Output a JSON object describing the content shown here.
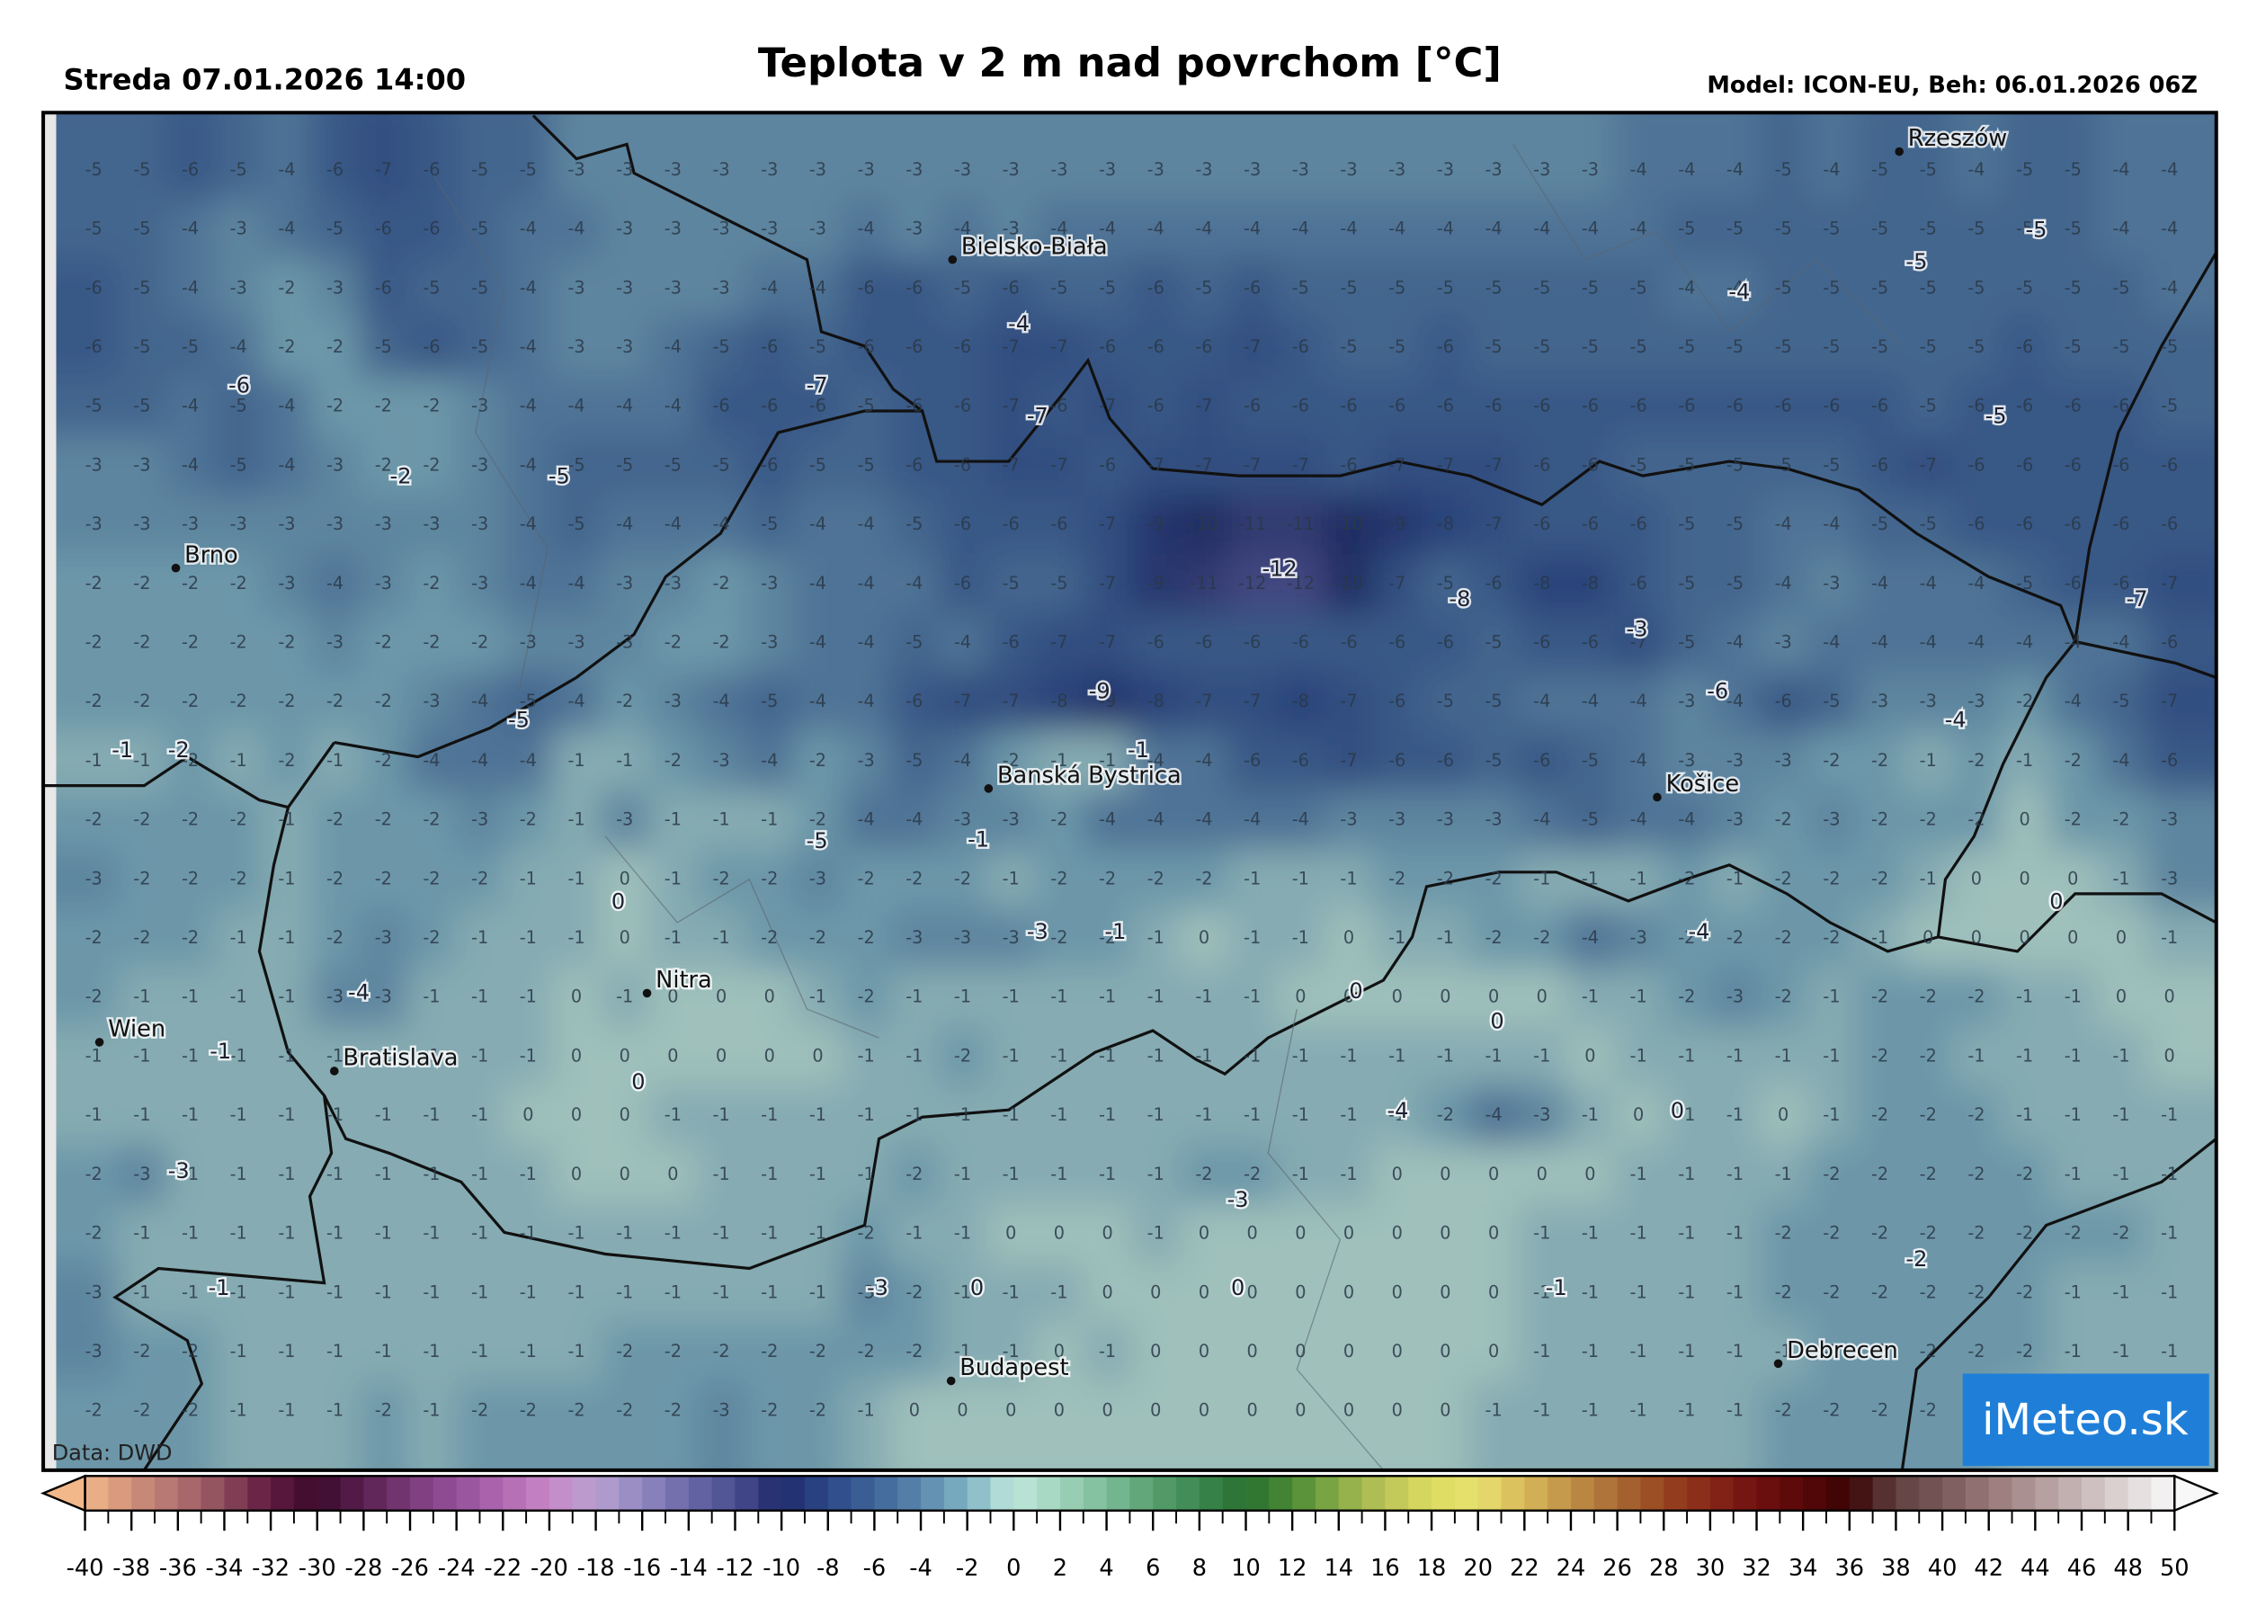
{
  "header": {
    "date": "Streda 07.01.2026 14:00",
    "title": "Teplota v 2 m nad povrchom [°C]",
    "model": "Model: ICON-EU, Beh: 06.01.2026 06Z"
  },
  "map": {
    "grid": [
      [
        -5,
        -5,
        -6,
        -5,
        -4,
        -6,
        -7,
        -6,
        -5,
        -5,
        -3,
        -3,
        -3,
        -3,
        -3,
        -3,
        -3,
        -3,
        -3,
        -3,
        -3,
        -3,
        -3,
        -3,
        -3,
        -3,
        -3,
        -3,
        -3,
        -3,
        -3,
        -3,
        -4,
        -4,
        -4,
        -5,
        -4,
        -5,
        -5,
        -4,
        -5,
        -5,
        -4,
        -4
      ],
      [
        -5,
        -5,
        -4,
        -3,
        -4,
        -5,
        -6,
        -6,
        -5,
        -4,
        -4,
        -3,
        -3,
        -3,
        -3,
        -3,
        -4,
        -3,
        -4,
        -3,
        -4,
        -4,
        -4,
        -4,
        -4,
        -4,
        -4,
        -4,
        -4,
        -4,
        -4,
        -4,
        -4,
        -5,
        -5,
        -5,
        -5,
        -5,
        -5,
        -5,
        -5,
        -5,
        -4,
        -4
      ],
      [
        -6,
        -5,
        -4,
        -3,
        -2,
        -3,
        -6,
        -5,
        -5,
        -4,
        -3,
        -3,
        -3,
        -3,
        -4,
        -4,
        -6,
        -6,
        -5,
        -6,
        -5,
        -5,
        -6,
        -5,
        -6,
        -5,
        -5,
        -5,
        -5,
        -5,
        -5,
        -5,
        -5,
        -4,
        -4,
        -5,
        -5,
        -5,
        -5,
        -5,
        -5,
        -5,
        -5,
        -4
      ],
      [
        -6,
        -5,
        -5,
        -4,
        -2,
        -2,
        -5,
        -6,
        -5,
        -4,
        -3,
        -3,
        -4,
        -5,
        -6,
        -5,
        -6,
        -6,
        -6,
        -7,
        -7,
        -6,
        -6,
        -6,
        -7,
        -6,
        -5,
        -5,
        -6,
        -5,
        -5,
        -5,
        -5,
        -5,
        -5,
        -5,
        -5,
        -5,
        -5,
        -5,
        -6,
        -5,
        -5,
        -5
      ],
      [
        -5,
        -5,
        -4,
        -5,
        -4,
        -2,
        -2,
        -2,
        -3,
        -4,
        -4,
        -4,
        -4,
        -6,
        -6,
        -6,
        -5,
        -6,
        -6,
        -7,
        -6,
        -7,
        -6,
        -7,
        -6,
        -6,
        -6,
        -6,
        -6,
        -6,
        -6,
        -6,
        -6,
        -6,
        -6,
        -6,
        -6,
        -6,
        -5,
        -6,
        -6,
        -6,
        -6,
        -5
      ],
      [
        -3,
        -3,
        -4,
        -5,
        -4,
        -3,
        -2,
        -2,
        -3,
        -4,
        -5,
        -5,
        -5,
        -5,
        -6,
        -5,
        -5,
        -6,
        -6,
        -7,
        -7,
        -6,
        -7,
        -7,
        -7,
        -7,
        -6,
        -7,
        -7,
        -7,
        -6,
        -6,
        -5,
        -5,
        -5,
        -5,
        -5,
        -6,
        -7,
        -6,
        -6,
        -6,
        -6,
        -6
      ],
      [
        -3,
        -3,
        -3,
        -3,
        -3,
        -3,
        -3,
        -3,
        -3,
        -4,
        -5,
        -4,
        -4,
        -4,
        -5,
        -4,
        -4,
        -5,
        -6,
        -6,
        -6,
        -7,
        -9,
        -10,
        -11,
        -11,
        -10,
        -9,
        -8,
        -7,
        -6,
        -6,
        -6,
        -5,
        -5,
        -4,
        -4,
        -5,
        -5,
        -6,
        -6,
        -6,
        -6,
        -6
      ],
      [
        -2,
        -2,
        -2,
        -2,
        -3,
        -4,
        -3,
        -2,
        -3,
        -4,
        -4,
        -3,
        -3,
        -2,
        -3,
        -4,
        -4,
        -4,
        -6,
        -5,
        -5,
        -7,
        -9,
        -11,
        -12,
        -12,
        -10,
        -7,
        -5,
        -6,
        -8,
        -8,
        -6,
        -5,
        -5,
        -4,
        -3,
        -4,
        -4,
        -4,
        -5,
        -6,
        -6,
        -7
      ],
      [
        -2,
        -2,
        -2,
        -2,
        -2,
        -3,
        -2,
        -2,
        -2,
        -3,
        -3,
        -3,
        -2,
        -2,
        -3,
        -4,
        -4,
        -5,
        -4,
        -6,
        -7,
        -7,
        -6,
        -6,
        -6,
        -6,
        -6,
        -6,
        -6,
        -5,
        -6,
        -6,
        -7,
        -5,
        -4,
        -3,
        -4,
        -4,
        -4,
        -4,
        -4,
        -4,
        -4,
        -6
      ],
      [
        -2,
        -2,
        -2,
        -2,
        -2,
        -2,
        -2,
        -3,
        -4,
        -5,
        -4,
        -2,
        -3,
        -4,
        -5,
        -4,
        -4,
        -6,
        -7,
        -7,
        -8,
        -9,
        -8,
        -7,
        -7,
        -8,
        -7,
        -6,
        -5,
        -5,
        -4,
        -4,
        -4,
        -3,
        -4,
        -6,
        -5,
        -3,
        -3,
        -3,
        -2,
        -4,
        -5,
        -7
      ],
      [
        -1,
        -1,
        -2,
        -1,
        -2,
        -1,
        -2,
        -4,
        -4,
        -4,
        -1,
        -1,
        -2,
        -3,
        -4,
        -2,
        -3,
        -5,
        -4,
        -2,
        -1,
        -1,
        -4,
        -4,
        -6,
        -6,
        -7,
        -6,
        -6,
        -5,
        -6,
        -5,
        -4,
        -3,
        -3,
        -3,
        -2,
        -2,
        -1,
        -2,
        -1,
        -2,
        -4,
        -6
      ],
      [
        -2,
        -2,
        -2,
        -2,
        -1,
        -2,
        -2,
        -2,
        -3,
        -2,
        -1,
        -3,
        -1,
        -1,
        -1,
        -2,
        -4,
        -4,
        -3,
        -3,
        -2,
        -4,
        -4,
        -4,
        -4,
        -4,
        -3,
        -3,
        -3,
        -3,
        -4,
        -5,
        -4,
        -4,
        -3,
        -2,
        -3,
        -2,
        -2,
        -2,
        0,
        -2,
        -2,
        -3
      ],
      [
        -3,
        -2,
        -2,
        -2,
        -1,
        -2,
        -2,
        -2,
        -2,
        -1,
        -1,
        0,
        -1,
        -2,
        -2,
        -3,
        -2,
        -2,
        -2,
        -1,
        -2,
        -2,
        -2,
        -2,
        -1,
        -1,
        -1,
        -2,
        -2,
        -2,
        -1,
        -1,
        -1,
        -2,
        -1,
        -2,
        -2,
        -2,
        -1,
        0,
        0,
        0,
        -1,
        -3
      ],
      [
        -2,
        -2,
        -2,
        -1,
        -1,
        -2,
        -3,
        -2,
        -1,
        -1,
        -1,
        0,
        -1,
        -1,
        -2,
        -2,
        -2,
        -3,
        -3,
        -3,
        -2,
        -2,
        -1,
        0,
        -1,
        -1,
        0,
        -1,
        -1,
        -2,
        -2,
        -4,
        -3,
        -2,
        -2,
        -2,
        -2,
        -1,
        0,
        0,
        0,
        0,
        0,
        -1
      ],
      [
        -2,
        -1,
        -1,
        -1,
        -1,
        -3,
        -3,
        -1,
        -1,
        -1,
        0,
        -1,
        0,
        0,
        0,
        -1,
        -2,
        -1,
        -1,
        -1,
        -1,
        -1,
        -1,
        -1,
        -1,
        0,
        0,
        0,
        0,
        0,
        0,
        -1,
        -1,
        -2,
        -3,
        -2,
        -1,
        -2,
        -2,
        -2,
        -1,
        -1,
        0,
        0
      ],
      [
        -1,
        -1,
        -1,
        -1,
        -1,
        -1,
        -1,
        -1,
        -1,
        -1,
        0,
        0,
        0,
        0,
        0,
        0,
        -1,
        -1,
        -2,
        -1,
        -1,
        -1,
        -1,
        -1,
        -1,
        -1,
        -1,
        -1,
        -1,
        -1,
        -1,
        0,
        -1,
        -1,
        -1,
        -1,
        -1,
        -2,
        -2,
        -1,
        -1,
        -1,
        -1,
        0
      ],
      [
        -1,
        -1,
        -1,
        -1,
        -1,
        -1,
        -1,
        -1,
        -1,
        0,
        0,
        0,
        -1,
        -1,
        -1,
        -1,
        -1,
        -1,
        -1,
        -1,
        -1,
        -1,
        -1,
        -1,
        -1,
        -1,
        -1,
        -1,
        -2,
        -4,
        -3,
        -1,
        0,
        -1,
        -1,
        0,
        -1,
        -2,
        -2,
        -2,
        -1,
        -1,
        -1,
        -1
      ],
      [
        -2,
        -3,
        -1,
        -1,
        -1,
        -1,
        -1,
        -1,
        -1,
        -1,
        0,
        0,
        0,
        -1,
        -1,
        -1,
        -1,
        -2,
        -1,
        -1,
        -1,
        -1,
        -1,
        -2,
        -2,
        -1,
        -1,
        0,
        0,
        0,
        0,
        0,
        -1,
        -1,
        -1,
        -1,
        -2,
        -2,
        -2,
        -2,
        -2,
        -1,
        -1,
        -1
      ],
      [
        -2,
        -1,
        -1,
        -1,
        -1,
        -1,
        -1,
        -1,
        -1,
        -1,
        -1,
        -1,
        -1,
        -1,
        -1,
        -1,
        -2,
        -1,
        -1,
        0,
        0,
        0,
        -1,
        0,
        0,
        0,
        0,
        0,
        0,
        0,
        -1,
        -1,
        -1,
        -1,
        -1,
        -2,
        -2,
        -2,
        -2,
        -2,
        -2,
        -2,
        -2,
        -1
      ],
      [
        -3,
        -1,
        -1,
        -1,
        -1,
        -1,
        -1,
        -1,
        -1,
        -1,
        -1,
        -1,
        -1,
        -1,
        -1,
        -1,
        -3,
        -2,
        -1,
        -1,
        -1,
        0,
        0,
        0,
        0,
        0,
        0,
        0,
        0,
        0,
        -1,
        -1,
        -1,
        -1,
        -1,
        -2,
        -2,
        -2,
        -2,
        -2,
        -2,
        -1,
        -1,
        -1
      ],
      [
        -3,
        -2,
        -2,
        -1,
        -1,
        -1,
        -1,
        -1,
        -1,
        -1,
        -1,
        -2,
        -2,
        -2,
        -2,
        -2,
        -2,
        -2,
        -1,
        -1,
        0,
        -1,
        0,
        0,
        0,
        0,
        0,
        0,
        0,
        0,
        -1,
        -1,
        -1,
        -1,
        -1,
        -1,
        -2,
        -2,
        -2,
        -2,
        -2,
        -1,
        -1,
        -1
      ],
      [
        -2,
        -2,
        -2,
        -1,
        -1,
        -1,
        -2,
        -1,
        -2,
        -2,
        -2,
        -2,
        -2,
        -3,
        -2,
        -2,
        -1,
        0,
        0,
        0,
        0,
        0,
        0,
        0,
        0,
        0,
        0,
        0,
        0,
        -1,
        -1,
        -1,
        -1,
        -1,
        -1,
        -2,
        -2,
        -2,
        -2,
        -2,
        -1,
        -1,
        -1,
        -1
      ]
    ],
    "contour_labels": [
      -6,
      -7,
      -7,
      -2,
      -5,
      -4,
      -12,
      -8,
      -9,
      -3,
      -6,
      -4,
      -5,
      -1,
      -1,
      -2,
      -5,
      -1,
      0,
      -3,
      -1,
      -4,
      -1,
      0,
      0,
      0,
      -4,
      -4,
      0,
      -3,
      -3,
      -1,
      -3,
      0,
      0,
      -1,
      -2,
      0,
      -4,
      -5,
      -5,
      -5,
      -7
    ],
    "cities": [
      "Rzeszów",
      "Bielsko-Biała",
      "Brno",
      "Banská Bystrica",
      "Košice",
      "Nitra",
      "Wien",
      "Bratislava",
      "Budapest",
      "Debrecen"
    ],
    "source": "Data: DWD",
    "logo": "iMeteo.sk"
  },
  "colorbar": {
    "ticks": [
      -40,
      -38,
      -36,
      -34,
      -32,
      -30,
      -28,
      -26,
      -24,
      -22,
      -20,
      -18,
      -16,
      -14,
      -12,
      -10,
      -8,
      -6,
      -4,
      -2,
      0,
      2,
      4,
      6,
      8,
      10,
      12,
      14,
      16,
      18,
      20,
      22,
      24,
      26,
      28,
      30,
      32,
      34,
      36,
      38,
      40,
      42,
      44,
      46,
      48,
      50
    ],
    "colors": [
      "#f2b88a",
      "#d0907a",
      "#b07070",
      "#8a4a5a",
      "#601a40",
      "#3a0a2a",
      "#5a2050",
      "#7a3a78",
      "#94509a",
      "#b068b0",
      "#c888c8",
      "#b8a0d0",
      "#9088c0",
      "#6a68a8",
      "#4a4e90",
      "#1e2a6a",
      "#2c4888",
      "#3e6498",
      "#5a86ac",
      "#80b4c4",
      "#c0e8dc",
      "#a0d4bc",
      "#7abc98",
      "#58a070",
      "#3a8650",
      "#2a7030",
      "#4a8a34",
      "#88ac48",
      "#bcc458",
      "#dcdc60",
      "#e8e070",
      "#d8b858",
      "#c09048",
      "#a86a34",
      "#984420",
      "#882818",
      "#701010",
      "#580808",
      "#3a0404",
      "#604040",
      "#785858",
      "#987878",
      "#b09898",
      "#c8b8b8",
      "#e0d8d8",
      "#f8f8f8"
    ]
  }
}
